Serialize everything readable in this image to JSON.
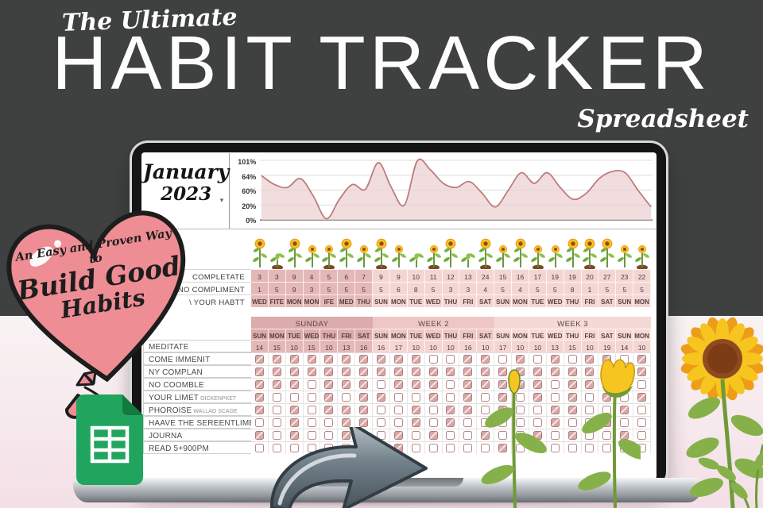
{
  "header": {
    "kicker": "The Ultimate",
    "title": "HABIT TRACKER",
    "subtitle": "Spreadsheet"
  },
  "balloon": {
    "line1": "An Easy and Proven Way to",
    "line2": "Build Good",
    "line3": "Habits"
  },
  "icons": {
    "dropdown_caret": "▾"
  },
  "month_selector": {
    "month": "January",
    "year": "2023"
  },
  "chart_data": {
    "type": "area",
    "title": "",
    "xlabel": "",
    "ylabel": "",
    "yticks": [
      "101%",
      "64%",
      "60%",
      "20%",
      "0%"
    ],
    "x": [
      1,
      2,
      3,
      4,
      5,
      6,
      7,
      8,
      9,
      10,
      11,
      12,
      13,
      14,
      15,
      16,
      17,
      18,
      19,
      20,
      21,
      22,
      23,
      24,
      25,
      26,
      27,
      28,
      29,
      30,
      31
    ],
    "values": [
      75,
      60,
      55,
      70,
      40,
      2,
      35,
      60,
      52,
      97,
      55,
      25,
      100,
      85,
      62,
      55,
      65,
      45,
      22,
      50,
      80,
      62,
      80,
      55,
      35,
      45,
      70,
      82,
      80,
      50,
      22
    ],
    "ylim": [
      0,
      101
    ],
    "grid": true,
    "legend": "none",
    "line_color": "#bd7b7b",
    "fill_color": "#ecd2d2"
  },
  "summary_table": {
    "rows": [
      {
        "label": "COMPLETATE",
        "values": [
          "3",
          "3",
          "9",
          "4",
          "5",
          "6",
          "7",
          "9",
          "9",
          "10",
          "11",
          "12",
          "13",
          "24",
          "15",
          "16",
          "17",
          "19",
          "19",
          "20",
          "27",
          "23",
          "22"
        ]
      },
      {
        "label": "NO COMPLIMENT",
        "values": [
          "1",
          "5",
          "9",
          "3",
          "5",
          "5",
          "5",
          "5",
          "6",
          "8",
          "5",
          "3",
          "3",
          "4",
          "5",
          "4",
          "5",
          "5",
          "8",
          "1",
          "5",
          "5",
          "5"
        ]
      },
      {
        "label": "\\ YOUR HABTT",
        "values": [
          "WED",
          "FITE",
          "MON",
          "MON",
          "IFE",
          "MED",
          "THU",
          "SUN",
          "MON",
          "TUE",
          "WED",
          "THU",
          "FRI",
          "SAT",
          "SUN",
          "MON",
          "TUE",
          "WED",
          "THU",
          "FRI",
          "SAT",
          "SUN",
          "MON"
        ]
      }
    ]
  },
  "plants": {
    "stages": [
      3,
      1,
      3,
      2,
      2,
      3,
      2,
      3,
      2,
      1,
      2,
      3,
      1,
      3,
      2,
      3,
      2,
      2,
      3,
      3,
      3,
      2,
      2
    ]
  },
  "habit_table": {
    "bands": [
      {
        "label": "SUNDAY",
        "span": 7,
        "class": "b1"
      },
      {
        "label": "WEEK 2",
        "span": 7,
        "class": "b2"
      },
      {
        "label": "WEEK 3",
        "span": 9,
        "class": "b3"
      }
    ],
    "days": [
      "SUN",
      "MON",
      "TUE",
      "WED",
      "THU",
      "FRI",
      "SAT",
      "SUN",
      "MON",
      "TUE",
      "WED",
      "THU",
      "FRI",
      "SAT",
      "SUN",
      "MON",
      "TUE",
      "WED",
      "THU",
      "FRI",
      "SAT",
      "SUN",
      "MON"
    ],
    "meditate": {
      "label": "MEDITATE",
      "values": [
        "14",
        "15",
        "10",
        "15",
        "10",
        "13",
        "16",
        "16",
        "17",
        "10",
        "10",
        "10",
        "16",
        "10",
        "17",
        "10",
        "10",
        "13",
        "15",
        "10",
        "19",
        "14",
        "10"
      ]
    },
    "habits": [
      {
        "label": "COME IMMENIT",
        "note": "",
        "checks": [
          1,
          1,
          1,
          1,
          1,
          1,
          1,
          1,
          1,
          1,
          0,
          0,
          1,
          1,
          0,
          1,
          0,
          1,
          0,
          1,
          1,
          0,
          1
        ]
      },
      {
        "label": "NY COMPLAN",
        "note": "",
        "checks": [
          1,
          1,
          1,
          1,
          1,
          1,
          1,
          1,
          1,
          1,
          1,
          1,
          1,
          1,
          1,
          1,
          1,
          1,
          1,
          1,
          1,
          1,
          1
        ]
      },
      {
        "label": "NO COOMBLE",
        "note": "",
        "checks": [
          1,
          1,
          1,
          0,
          1,
          1,
          1,
          0,
          1,
          1,
          1,
          0,
          1,
          1,
          1,
          1,
          1,
          0,
          1,
          1,
          0,
          1,
          0
        ]
      },
      {
        "label": "YOUR LIMET",
        "note": "OICKENPKET",
        "checks": [
          1,
          0,
          0,
          0,
          1,
          0,
          1,
          1,
          0,
          0,
          1,
          0,
          1,
          0,
          1,
          0,
          1,
          0,
          1,
          0,
          1,
          0,
          1
        ]
      },
      {
        "label": "PHOROISE",
        "note": "WALLAO SCAGE",
        "checks": [
          1,
          0,
          1,
          0,
          1,
          1,
          1,
          0,
          0,
          1,
          0,
          1,
          1,
          0,
          1,
          0,
          0,
          1,
          1,
          0,
          0,
          1,
          0
        ]
      },
      {
        "label": "HAAVE THE SEREENTLIME",
        "note": "",
        "checks": [
          0,
          0,
          1,
          0,
          0,
          1,
          1,
          0,
          0,
          1,
          0,
          1,
          0,
          0,
          0,
          0,
          0,
          1,
          0,
          0,
          1,
          0,
          0
        ]
      },
      {
        "label": "JOURNA",
        "note": "",
        "checks": [
          1,
          0,
          1,
          0,
          0,
          1,
          0,
          0,
          1,
          0,
          1,
          0,
          0,
          1,
          0,
          0,
          1,
          0,
          1,
          0,
          0,
          1,
          0
        ]
      },
      {
        "label": "READ 5+900PM",
        "note": "",
        "checks": [
          0,
          0,
          0,
          0,
          0,
          0,
          0,
          0,
          1,
          0,
          0,
          0,
          0,
          0,
          1,
          0,
          0,
          0,
          0,
          0,
          0,
          0,
          0
        ]
      }
    ]
  },
  "colors": {
    "bg_dark": "#3e4140",
    "bg_light": "#f6ecef",
    "heart_pink": "#ee8d94",
    "week1_pink": "#e5b8b8",
    "light_pink": "#f3d6d3",
    "chart_line": "#bd7b7b",
    "sheets_green": "#21a55e",
    "arrow_gray": "#5d6b74",
    "leaf_green": "#7fae45",
    "sunflower_yellow": "#f6c51f"
  }
}
